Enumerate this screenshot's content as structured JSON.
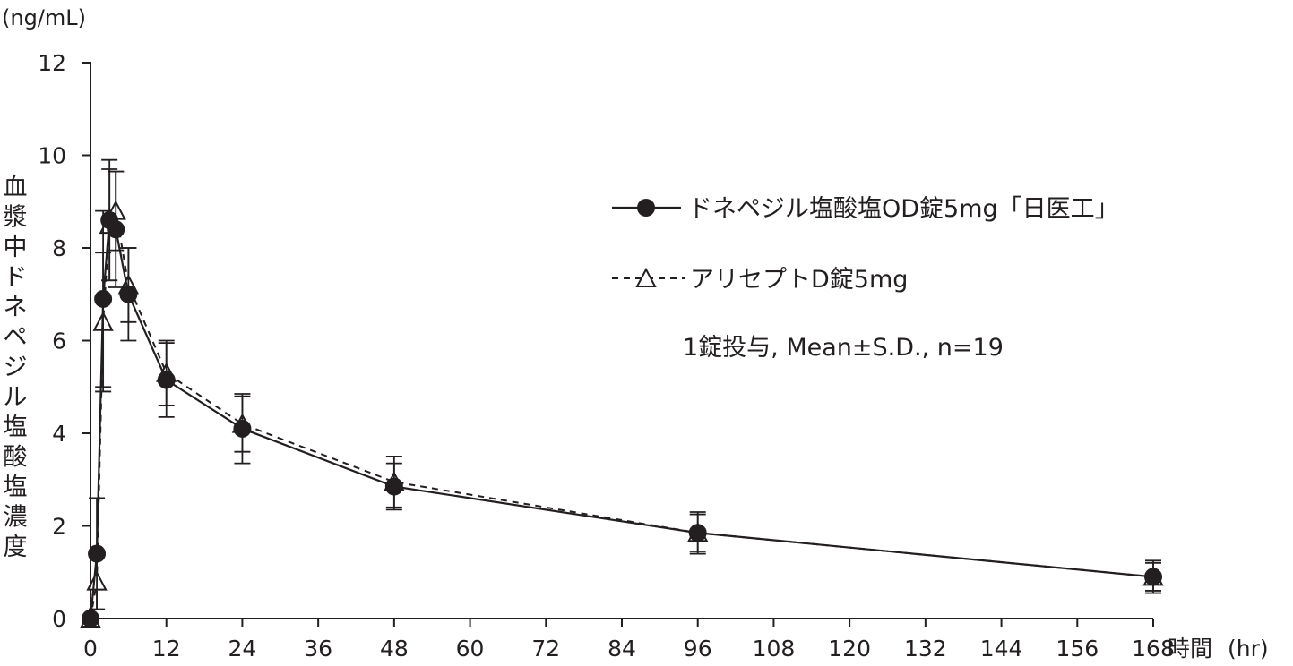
{
  "chart_data": {
    "type": "line",
    "title": "",
    "ylabel": "血漿中ドネペジル塩酸塩濃度",
    "y_unit": "(ng/mL)",
    "xlabel": "時間",
    "x_unit": "(hr)",
    "xlim": [
      0,
      168
    ],
    "ylim": [
      0,
      12
    ],
    "x_ticks": [
      0,
      12,
      24,
      36,
      48,
      60,
      72,
      84,
      96,
      108,
      120,
      132,
      144,
      156,
      168
    ],
    "y_ticks": [
      0,
      2,
      4,
      6,
      8,
      10,
      12
    ],
    "grid": false,
    "legend_position": "top-right",
    "series": [
      {
        "name": "ドネペジル塩酸塩OD錠5mg「日医工」",
        "marker": "filled-circle",
        "line": "solid",
        "x": [
          0,
          1,
          2,
          3,
          4,
          6,
          12,
          24,
          48,
          96,
          168
        ],
        "values": [
          0,
          1.4,
          6.9,
          8.6,
          8.4,
          7.0,
          5.15,
          4.1,
          2.85,
          1.85,
          0.9
        ],
        "sd": [
          0,
          1.2,
          1.9,
          1.3,
          1.25,
          1.0,
          0.8,
          0.75,
          0.5,
          0.45,
          0.35
        ]
      },
      {
        "name": "アリセプトD錠5mg",
        "marker": "open-triangle",
        "line": "dashed",
        "x": [
          0,
          1,
          2,
          3,
          4,
          6,
          12,
          24,
          48,
          96,
          168
        ],
        "values": [
          0,
          0.8,
          6.4,
          8.5,
          8.8,
          7.2,
          5.3,
          4.2,
          2.95,
          1.85,
          0.9
        ],
        "sd": [
          0,
          0.6,
          1.5,
          1.2,
          0.85,
          0.8,
          0.7,
          0.6,
          0.55,
          0.4,
          0.3
        ]
      }
    ],
    "annotations": [
      "1錠投与, Mean±S.D., n=19"
    ]
  },
  "legend": {
    "series1_label": "ドネペジル塩酸塩OD錠5mg「日医工」",
    "series2_label": "アリセプトD錠5mg",
    "note": "1錠投与, Mean±S.D., n=19"
  },
  "colors": {
    "ink": "#231f20",
    "background": "#ffffff"
  }
}
